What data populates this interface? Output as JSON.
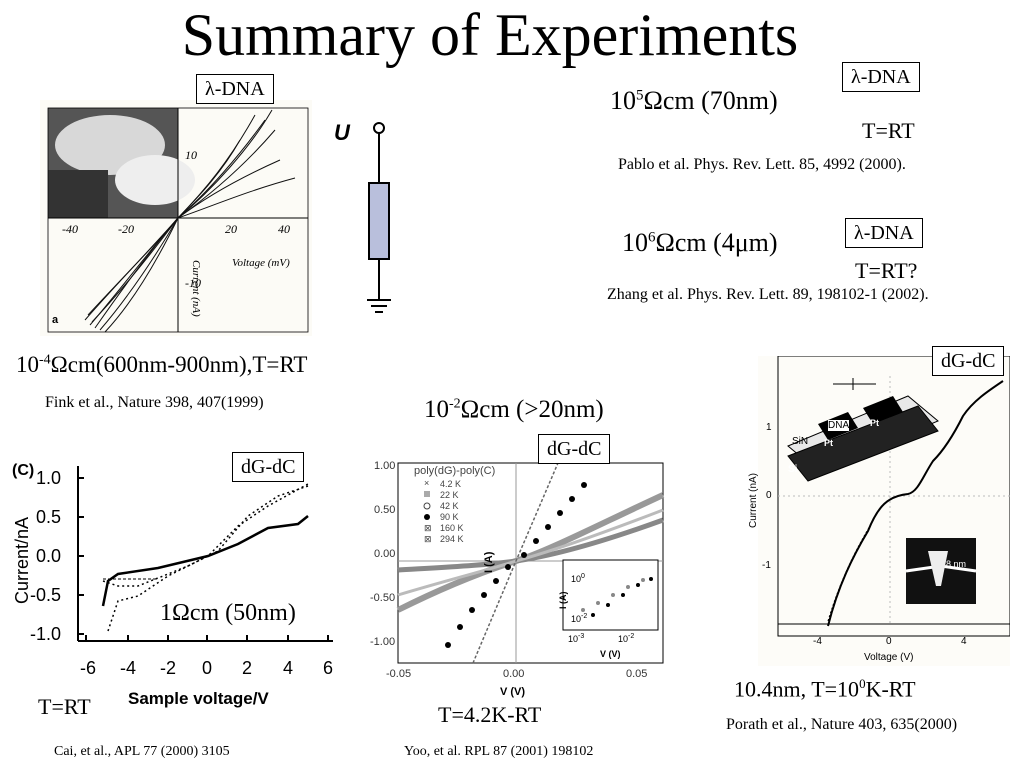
{
  "title": "Summary of Experiments",
  "labels": {
    "lambda_dna": "λ-DNA",
    "dg_dc": "dG-dC"
  },
  "fink": {
    "resistivity": "10-4Ωcm(600nm-900nm),T=RT",
    "res_base": "10",
    "res_exp": "-4",
    "res_rest": "Ωcm(600nm-900nm),T=RT",
    "citation": "Fink et al., Nature 398, 407(1999)",
    "panel_letter": "a",
    "circuit_label": "U",
    "axis_xlabel": "Voltage (mV)",
    "axis_ylabel": "Current (nA)",
    "x_ticks": [
      "-40",
      "-20",
      "20",
      "40"
    ],
    "y_ticks": [
      "10",
      "-10"
    ]
  },
  "pablo": {
    "res_base": "10",
    "res_exp": "5",
    "res_rest": "Ωcm (70nm)",
    "temp": "T=RT",
    "citation": "Pablo et al. Phys. Rev. Lett.  85, 4992 (2000)."
  },
  "zhang": {
    "res_base": "10",
    "res_exp": "6",
    "res_rest": "Ωcm (4μm)",
    "temp": "T=RT?",
    "citation": "Zhang et al. Phys. Rev. Lett.  89, 198102-1 (2002)."
  },
  "cai": {
    "resistivity": "1Ωcm (50nm)",
    "temp": "T=RT",
    "citation": "Cai, et al., APL 77 (2000) 3105",
    "panel_letter": "(C)",
    "ylabel": "Current/nA",
    "xlabel": "Sample voltage/V",
    "y_ticks": [
      "1.0",
      "0.5",
      "0.0",
      "-0.5",
      "-1.0"
    ],
    "x_ticks": [
      "-6",
      "-4",
      "-2",
      "0",
      "2",
      "4",
      "6"
    ]
  },
  "yoo": {
    "res_base": "10",
    "res_exp": "-2",
    "res_rest": "Ωcm (>20nm)",
    "temp": "T=4.2K-RT",
    "citation": "Yoo, et al. RPL 87 (2001) 198102",
    "legend_title": "poly(dG)-poly(C)",
    "legend": [
      "4.2 K",
      "22 K",
      "42 K",
      "90 K",
      "160 K",
      "294 K"
    ],
    "y_ticks": [
      "1.00",
      "0.50",
      "0.00",
      "-0.50",
      "-1.00"
    ],
    "x_ticks": [
      "-0.05",
      "0.00",
      "0.05"
    ],
    "ylabel": "I (A)",
    "xlabel": "V (V)",
    "inset_ylabel": "I (A)",
    "inset_xlabel": "V (V)",
    "inset_y_ticks": [
      "10",
      "10"
    ],
    "inset_x_ticks": [
      "10",
      "10"
    ]
  },
  "porath": {
    "result": "10.4nm, T=100K-RT",
    "res_pre": "10.4nm, T=10",
    "res_exp": "0",
    "res_rest": "K-RT",
    "citation": "Porath et al., Nature 403, 635(2000)",
    "ylabel": "Current (nA)",
    "xlabel": "Voltage (V)",
    "y_ticks": [
      "1",
      "0",
      "-1"
    ],
    "x_ticks": [
      "-4",
      "0",
      "4"
    ],
    "device_labels": [
      "DNA",
      "Pt",
      "Pt",
      "SiN",
      "Si"
    ],
    "gap_label": "8 nm"
  }
}
